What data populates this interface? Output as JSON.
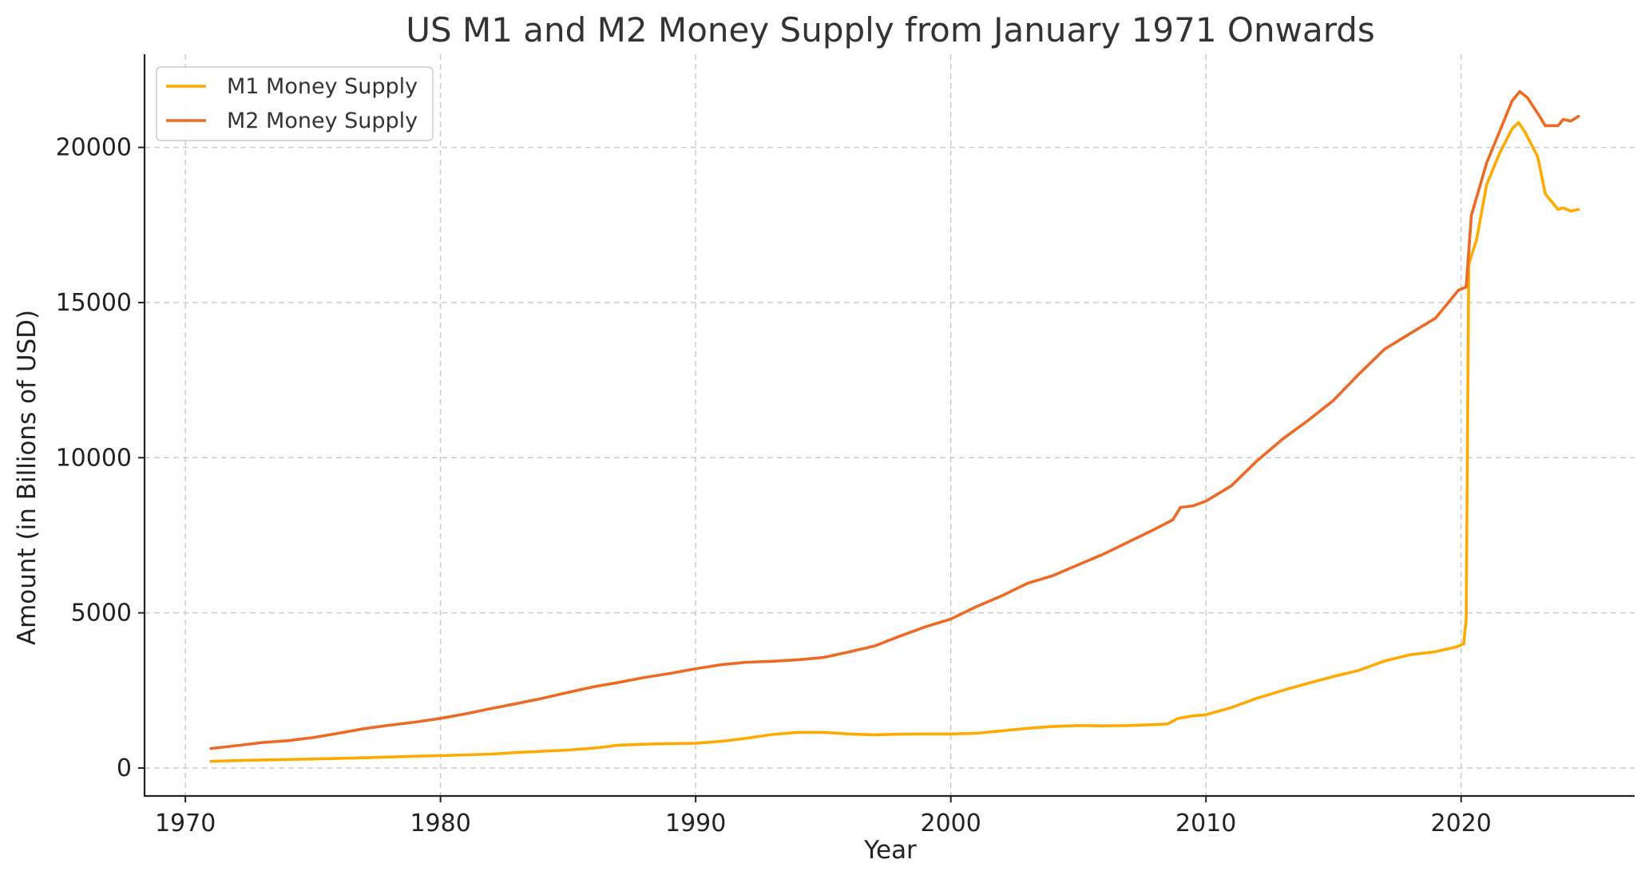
{
  "chart_data": {
    "type": "line",
    "title": "US M1 and M2 Money Supply from January 1971 Onwards",
    "xlabel": "Year",
    "ylabel": "Amount (in Billions of USD)",
    "xlim": [
      1968.4,
      2026.8
    ],
    "ylim": [
      -900,
      23000
    ],
    "xticks": [
      1970,
      1980,
      1990,
      2000,
      2010,
      2020
    ],
    "yticks": [
      0,
      5000,
      10000,
      15000,
      20000
    ],
    "grid": true,
    "legend_position": "top-left",
    "series": [
      {
        "name": "M1 Money Supply",
        "color": "#FFAA00",
        "x": [
          1971.0,
          1973.0,
          1975.0,
          1977.0,
          1979.0,
          1980.0,
          1982.0,
          1983.0,
          1985.0,
          1986.0,
          1987.0,
          1988.5,
          1990.0,
          1991.0,
          1992.0,
          1993.0,
          1994.0,
          1995.0,
          1996.0,
          1997.0,
          1998.0,
          1999.0,
          2000.0,
          2001.0,
          2002.0,
          2003.0,
          2004.0,
          2005.0,
          2006.0,
          2007.0,
          2008.0,
          2008.5,
          2008.9,
          2009.5,
          2010.0,
          2011.0,
          2012.0,
          2013.0,
          2014.0,
          2015.0,
          2016.0,
          2017.0,
          2018.0,
          2019.0,
          2019.8,
          2020.1,
          2020.2,
          2020.3,
          2020.4,
          2020.6,
          2021.0,
          2021.5,
          2022.0,
          2022.25,
          2022.5,
          2023.0,
          2023.3,
          2023.8,
          2024.0,
          2024.3,
          2024.6
        ],
        "values": [
          220,
          260,
          290,
          330,
          380,
          400,
          450,
          500,
          580,
          640,
          740,
          780,
          800,
          860,
          960,
          1080,
          1150,
          1150,
          1100,
          1070,
          1090,
          1100,
          1100,
          1120,
          1200,
          1280,
          1340,
          1370,
          1360,
          1370,
          1400,
          1420,
          1600,
          1680,
          1720,
          1950,
          2250,
          2500,
          2730,
          2950,
          3150,
          3450,
          3650,
          3750,
          3900,
          4000,
          4800,
          16200,
          16500,
          17000,
          18800,
          19800,
          20600,
          20800,
          20500,
          19700,
          18500,
          18000,
          18050,
          17950,
          18000
        ]
      },
      {
        "name": "M2 Money Supply",
        "color": "#EE6A24",
        "x": [
          1971.0,
          1972.0,
          1973.0,
          1974.0,
          1975.0,
          1976.0,
          1977.0,
          1978.0,
          1979.0,
          1980.0,
          1981.0,
          1982.0,
          1983.0,
          1984.0,
          1985.0,
          1986.0,
          1987.0,
          1988.0,
          1989.0,
          1990.0,
          1991.0,
          1992.0,
          1993.0,
          1994.0,
          1995.0,
          1996.0,
          1997.0,
          1998.0,
          1999.0,
          2000.0,
          2001.0,
          2002.0,
          2003.0,
          2004.0,
          2005.0,
          2006.0,
          2007.0,
          2008.0,
          2008.7,
          2009.0,
          2009.5,
          2010.0,
          2011.0,
          2012.0,
          2013.0,
          2014.0,
          2015.0,
          2016.0,
          2017.0,
          2018.0,
          2019.0,
          2019.9,
          2020.2,
          2020.4,
          2021.0,
          2021.5,
          2022.0,
          2022.3,
          2022.6,
          2023.0,
          2023.3,
          2023.8,
          2024.0,
          2024.3,
          2024.6
        ],
        "values": [
          630,
          720,
          820,
          880,
          980,
          1120,
          1270,
          1380,
          1480,
          1600,
          1750,
          1920,
          2080,
          2250,
          2440,
          2620,
          2760,
          2920,
          3050,
          3200,
          3330,
          3410,
          3440,
          3490,
          3560,
          3740,
          3930,
          4250,
          4550,
          4800,
          5200,
          5550,
          5950,
          6200,
          6550,
          6900,
          7300,
          7700,
          8000,
          8400,
          8450,
          8600,
          9100,
          9900,
          10600,
          11200,
          11850,
          12700,
          13500,
          14000,
          14500,
          15400,
          15500,
          17800,
          19500,
          20500,
          21500,
          21800,
          21600,
          21100,
          20700,
          20700,
          20900,
          20850,
          21000
        ]
      }
    ]
  }
}
